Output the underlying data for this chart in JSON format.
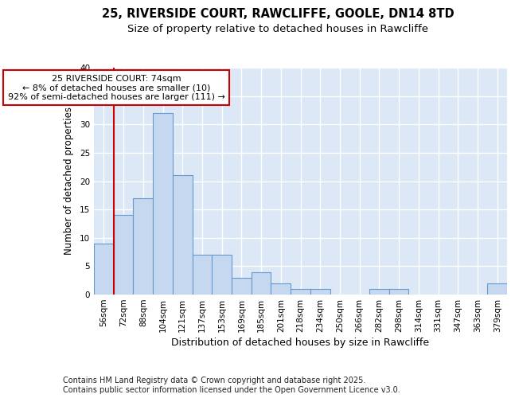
{
  "title1": "25, RIVERSIDE COURT, RAWCLIFFE, GOOLE, DN14 8TD",
  "title2": "Size of property relative to detached houses in Rawcliffe",
  "xlabel": "Distribution of detached houses by size in Rawcliffe",
  "ylabel": "Number of detached properties",
  "categories": [
    "56sqm",
    "72sqm",
    "88sqm",
    "104sqm",
    "121sqm",
    "137sqm",
    "153sqm",
    "169sqm",
    "185sqm",
    "201sqm",
    "218sqm",
    "234sqm",
    "250sqm",
    "266sqm",
    "282sqm",
    "298sqm",
    "314sqm",
    "331sqm",
    "347sqm",
    "363sqm",
    "379sqm"
  ],
  "values": [
    9,
    14,
    17,
    32,
    21,
    7,
    7,
    3,
    4,
    2,
    1,
    1,
    0,
    0,
    1,
    1,
    0,
    0,
    0,
    0,
    2
  ],
  "bar_color": "#c5d8f0",
  "bar_edge_color": "#6699cc",
  "vline_x": 0.5,
  "vline_color": "#cc0000",
  "annotation_text": "25 RIVERSIDE COURT: 74sqm\n← 8% of detached houses are smaller (10)\n92% of semi-detached houses are larger (111) →",
  "annotation_box_color": "#ffffff",
  "annotation_box_edge": "#cc0000",
  "ylim": [
    0,
    40
  ],
  "yticks": [
    0,
    5,
    10,
    15,
    20,
    25,
    30,
    35,
    40
  ],
  "bg_color": "#dce8f5",
  "grid_color": "#ffffff",
  "fig_bg_color": "#ffffff",
  "footer": "Contains HM Land Registry data © Crown copyright and database right 2025.\nContains public sector information licensed under the Open Government Licence v3.0.",
  "title1_fontsize": 10.5,
  "title2_fontsize": 9.5,
  "xlabel_fontsize": 9,
  "ylabel_fontsize": 8.5,
  "tick_fontsize": 7.5,
  "footer_fontsize": 7,
  "annot_fontsize": 8
}
